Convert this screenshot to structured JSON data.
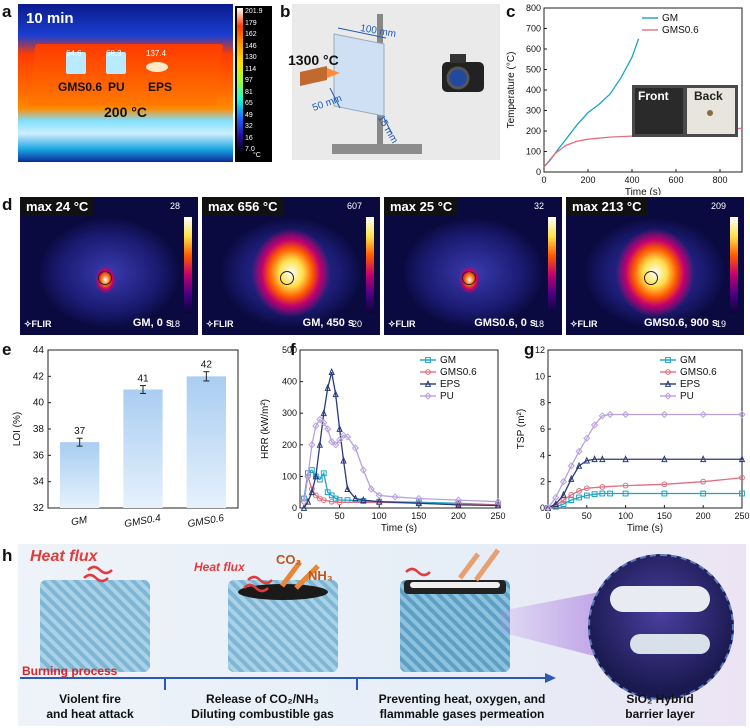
{
  "labels": {
    "a": "a",
    "b": "b",
    "c": "c",
    "d": "d",
    "e": "e",
    "f": "f",
    "g": "g",
    "h": "h"
  },
  "panel_a": {
    "time": "10 min",
    "bed_temp": "200 °C",
    "samples": [
      "GMS0.6",
      "PU",
      "EPS"
    ],
    "spot_values": [
      "64.6",
      "68.3",
      "137.4"
    ],
    "scale_ticks": [
      "201.9",
      "179",
      "162",
      "146",
      "130",
      "114",
      "97",
      "81",
      "65",
      "49",
      "32",
      "16",
      "7.0"
    ],
    "unit": "°C"
  },
  "panel_b": {
    "flame_temp": "1300 °C",
    "dim_top": "100 mm",
    "dim_left": "50 mm",
    "dim_bottom": "15 mm"
  },
  "panel_c": {
    "chart_data": {
      "type": "line",
      "xlabel": "Time (s)",
      "ylabel": "Temperature (°C)",
      "xlim": [
        0,
        900
      ],
      "ylim": [
        0,
        800
      ],
      "xticks": [
        0,
        200,
        400,
        600,
        800
      ],
      "yticks": [
        0,
        100,
        200,
        300,
        400,
        500,
        600,
        700,
        800
      ],
      "legend": "top-right",
      "series": [
        {
          "name": "GM",
          "color": "#1aa3c9",
          "x": [
            0,
            30,
            60,
            100,
            150,
            200,
            250,
            300,
            350,
            400,
            430
          ],
          "y": [
            25,
            60,
            105,
            160,
            230,
            290,
            330,
            380,
            460,
            560,
            650
          ]
        },
        {
          "name": "GMS0.6",
          "color": "#e07080",
          "x": [
            0,
            50,
            100,
            150,
            200,
            300,
            400,
            500,
            600,
            700,
            800,
            900
          ],
          "y": [
            25,
            90,
            130,
            150,
            160,
            170,
            175,
            180,
            185,
            195,
            205,
            213
          ]
        }
      ],
      "inset": [
        "Front",
        "Back"
      ]
    }
  },
  "panel_d": {
    "images": [
      {
        "max": "max 24 °C",
        "caption": "GM, 0 s",
        "top": "28",
        "bottom": "18"
      },
      {
        "max": "max 656 °C",
        "caption": "GM, 450 s",
        "top": "607",
        "bottom": "20"
      },
      {
        "max": "max 25 °C",
        "caption": "GMS0.6, 0 s",
        "top": "32",
        "bottom": "18"
      },
      {
        "max": "max 213 °C",
        "caption": "GMS0.6, 900 s",
        "top": "209",
        "bottom": "19"
      }
    ],
    "brand": "✧FLIR"
  },
  "panel_e": {
    "chart_data": {
      "type": "bar",
      "categories": [
        "GM",
        "GMS0.4",
        "GMS0.6"
      ],
      "values": [
        37,
        41,
        42
      ],
      "errors": [
        0.3,
        0.3,
        0.35
      ],
      "data_labels": [
        "37",
        "41",
        "42"
      ],
      "ylabel": "LOI (%)",
      "ylim": [
        32,
        44
      ],
      "yticks": [
        32,
        34,
        36,
        38,
        40,
        42,
        44
      ]
    }
  },
  "panel_f": {
    "chart_data": {
      "type": "line",
      "xlabel": "Time (s)",
      "ylabel": "HRR (kW/m²)",
      "xlim": [
        0,
        250
      ],
      "ylim": [
        0,
        500
      ],
      "xticks": [
        0,
        50,
        100,
        150,
        200,
        250
      ],
      "yticks": [
        0,
        100,
        200,
        300,
        400,
        500
      ],
      "legend": "top-right",
      "series": [
        {
          "name": "GM",
          "color": "#1aa3c9",
          "marker": "square",
          "x": [
            5,
            10,
            15,
            20,
            25,
            30,
            35,
            40,
            45,
            50,
            60,
            80,
            100,
            150,
            200,
            250
          ],
          "y": [
            30,
            110,
            120,
            100,
            90,
            110,
            50,
            40,
            30,
            25,
            25,
            22,
            20,
            18,
            15,
            10
          ]
        },
        {
          "name": "GMS0.6",
          "color": "#e07080",
          "marker": "circle",
          "x": [
            5,
            10,
            15,
            20,
            25,
            30,
            40,
            50,
            100,
            150,
            200,
            250
          ],
          "y": [
            20,
            100,
            60,
            40,
            30,
            25,
            20,
            18,
            18,
            15,
            12,
            10
          ]
        },
        {
          "name": "EPS",
          "color": "#2a3a7a",
          "marker": "triangle",
          "x": [
            5,
            10,
            15,
            20,
            25,
            30,
            35,
            40,
            45,
            50,
            55,
            60,
            70,
            80,
            100,
            150,
            200,
            250
          ],
          "y": [
            0,
            20,
            50,
            100,
            200,
            300,
            380,
            430,
            360,
            250,
            150,
            60,
            30,
            25,
            20,
            15,
            10,
            8
          ]
        },
        {
          "name": "PU",
          "color": "#b9a0e0",
          "marker": "diamond",
          "x": [
            5,
            10,
            15,
            20,
            25,
            30,
            35,
            40,
            45,
            50,
            55,
            60,
            70,
            80,
            90,
            100,
            120,
            150,
            200,
            250
          ],
          "y": [
            20,
            100,
            200,
            260,
            280,
            270,
            250,
            210,
            200,
            215,
            230,
            225,
            190,
            120,
            60,
            40,
            35,
            30,
            25,
            20
          ]
        }
      ]
    }
  },
  "panel_g": {
    "chart_data": {
      "type": "line",
      "xlabel": "Time (s)",
      "ylabel": "TSP (m²)",
      "xlim": [
        0,
        250
      ],
      "ylim": [
        0,
        12
      ],
      "xticks": [
        0,
        50,
        100,
        150,
        200,
        250
      ],
      "yticks": [
        0,
        2,
        4,
        6,
        8,
        10,
        12
      ],
      "legend": "top-right",
      "series": [
        {
          "name": "GM",
          "color": "#1aa3c9",
          "marker": "square",
          "x": [
            0,
            10,
            20,
            30,
            40,
            50,
            60,
            70,
            80,
            100,
            150,
            200,
            250
          ],
          "y": [
            0,
            0.1,
            0.3,
            0.6,
            0.8,
            0.95,
            1.05,
            1.1,
            1.1,
            1.1,
            1.1,
            1.1,
            1.1
          ]
        },
        {
          "name": "GMS0.6",
          "color": "#e07080",
          "marker": "circle",
          "x": [
            0,
            10,
            20,
            30,
            40,
            50,
            70,
            100,
            150,
            200,
            250
          ],
          "y": [
            0,
            0.2,
            0.6,
            1.0,
            1.3,
            1.5,
            1.6,
            1.7,
            1.8,
            2.0,
            2.3
          ]
        },
        {
          "name": "EPS",
          "color": "#2a3a7a",
          "marker": "triangle",
          "x": [
            0,
            10,
            20,
            30,
            40,
            50,
            60,
            70,
            100,
            150,
            200,
            250
          ],
          "y": [
            0,
            0.3,
            1.0,
            2.2,
            3.2,
            3.6,
            3.7,
            3.7,
            3.7,
            3.7,
            3.7,
            3.7
          ]
        },
        {
          "name": "PU",
          "color": "#b9a0e0",
          "marker": "diamond",
          "x": [
            0,
            10,
            20,
            30,
            40,
            50,
            60,
            70,
            80,
            100,
            150,
            200,
            250
          ],
          "y": [
            0,
            0.8,
            2.0,
            3.2,
            4.3,
            5.3,
            6.3,
            7.0,
            7.1,
            7.1,
            7.1,
            7.1,
            7.1
          ]
        }
      ]
    }
  },
  "panel_h": {
    "heat_flux_1": "Heat flux",
    "heat_flux_2": "Heat flux",
    "co2": "CO₂",
    "nh3": "NH₃",
    "burning": "Burning process",
    "steps": [
      {
        "line1": "Violent fire",
        "line2": "and heat attack"
      },
      {
        "line1": "Release of CO₂/NH₃",
        "line2": "Diluting combustible gas"
      },
      {
        "line1": "Preventing heat, oxygen, and",
        "line2": "flammable gases permeation"
      }
    ],
    "barrier_line1": "SiO₂ Hybrid",
    "barrier_line2": "barrier layer"
  }
}
